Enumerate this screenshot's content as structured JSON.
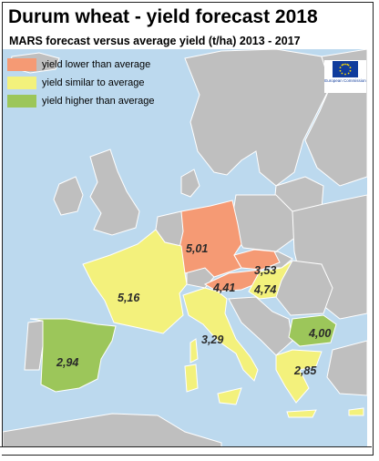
{
  "title": "Durum wheat - yield forecast 2018",
  "subtitle": "MARS forecast versus average yield (t/ha) 2013 - 2017",
  "colors": {
    "sea": "#bcd9ee",
    "land_other": "#bfbfbf",
    "lower": "#f59a74",
    "similar": "#f3f17c",
    "higher": "#9cc65a",
    "border": "#ffffff"
  },
  "legend": [
    {
      "label": "yield lower than average",
      "category": "lower"
    },
    {
      "label": "yield similar to average",
      "category": "similar"
    },
    {
      "label": "yield higher than average",
      "category": "higher"
    }
  ],
  "logo": {
    "text": "European Commission"
  },
  "regions": [
    {
      "country": "Germany",
      "category": "lower",
      "value": "5,01"
    },
    {
      "country": "Czechia",
      "category": "lower",
      "value": "3,53"
    },
    {
      "country": "Austria",
      "category": "lower",
      "value": "4,41"
    },
    {
      "country": "Hungary",
      "category": "similar",
      "value": "4,74"
    },
    {
      "country": "France",
      "category": "similar",
      "value": "5,16"
    },
    {
      "country": "Italy",
      "category": "similar",
      "value": "3,29"
    },
    {
      "country": "Spain",
      "category": "higher",
      "value": "2,94"
    },
    {
      "country": "Bulgaria",
      "category": "higher",
      "value": "4,00"
    },
    {
      "country": "Greece",
      "category": "similar",
      "value": "2,85"
    }
  ]
}
